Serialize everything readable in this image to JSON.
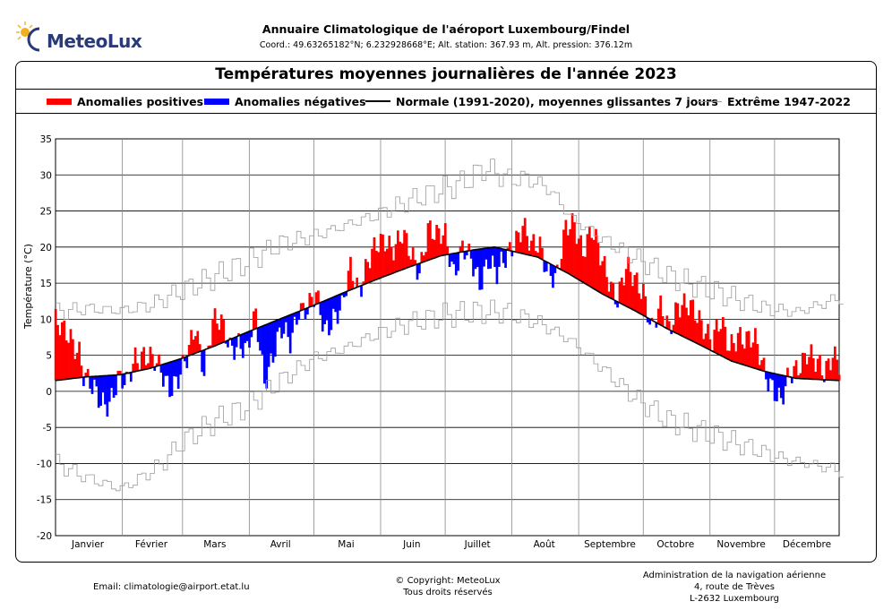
{
  "header": {
    "logo_text": "MeteoLux",
    "title": "Annuaire Climatologique de l'aéroport Luxembourg/Findel",
    "subtitle": "Coord.: 49.63265182°N; 6.232928668°E; Alt. station: 367.93 m, Alt. pression: 376.12m"
  },
  "colors": {
    "positive": "#ff0000",
    "negative": "#0000ff",
    "normal": "#000000",
    "extreme": "#9a9a9a"
  },
  "legend": {
    "positive": "Anomalies positives",
    "negative": "Anomalies négatives",
    "normal": "Normale (1991-2020), moyennes glissantes 7 jours",
    "extreme": "Extrême 1947-2022"
  },
  "chart_data": {
    "type": "area",
    "title": "Températures moyennes journalières de l'année 2023",
    "ylabel": "Température (°C)",
    "ylim": [
      -20,
      35
    ],
    "yticks": [
      35,
      30,
      25,
      20,
      15,
      10,
      5,
      0,
      -5,
      -10,
      -15,
      -20
    ],
    "grid": true,
    "legend_position": "top",
    "months": [
      "Janvier",
      "Février",
      "Mars",
      "Avril",
      "Mai",
      "Juin",
      "Juillet",
      "Août",
      "Septembre",
      "Octobre",
      "Novembre",
      "Décembre"
    ],
    "month_days": [
      31,
      28,
      31,
      30,
      31,
      30,
      31,
      31,
      30,
      31,
      30,
      31
    ],
    "series": [
      {
        "key": "normal",
        "name": "Normale (1991-2020), moyennes glissantes 7 jours",
        "x_day": [
          1,
          15,
          31,
          45,
          59,
          75,
          90,
          105,
          120,
          135,
          150,
          165,
          180,
          195,
          205,
          215,
          225,
          240,
          255,
          270,
          285,
          300,
          315,
          330,
          345,
          365
        ],
        "values": [
          1.5,
          2.0,
          2.3,
          3.2,
          4.5,
          6.3,
          8.2,
          10.0,
          11.8,
          13.7,
          15.5,
          17.2,
          18.8,
          19.6,
          20.0,
          19.3,
          18.6,
          16.2,
          13.5,
          11.2,
          8.7,
          6.5,
          4.2,
          2.8,
          1.8,
          1.5
        ]
      },
      {
        "key": "extreme_max",
        "name": "Extrême 1947-2022",
        "x_day": [
          1,
          15,
          31,
          45,
          59,
          75,
          90,
          105,
          120,
          135,
          150,
          165,
          180,
          190,
          200,
          210,
          220,
          230,
          240,
          255,
          270,
          285,
          300,
          315,
          330,
          345,
          365
        ],
        "values": [
          11.0,
          11.5,
          11.2,
          12.0,
          14.0,
          16.0,
          18.0,
          20.5,
          21.5,
          23.0,
          24.5,
          26.5,
          28.0,
          29.0,
          31.0,
          29.5,
          29.5,
          28.0,
          24.0,
          21.0,
          18.5,
          16.0,
          14.5,
          13.0,
          11.5,
          11.0,
          13.0
        ]
      },
      {
        "key": "extreme_min",
        "name": "Extrême 1947-2022",
        "x_day": [
          1,
          15,
          31,
          40,
          50,
          59,
          75,
          90,
          105,
          120,
          135,
          150,
          165,
          180,
          195,
          210,
          225,
          240,
          255,
          270,
          285,
          300,
          315,
          330,
          340,
          350,
          365
        ],
        "values": [
          -10.0,
          -12.0,
          -13.5,
          -12.0,
          -10.0,
          -7.0,
          -4.0,
          -2.0,
          1.5,
          4.5,
          6.0,
          8.0,
          9.5,
          10.5,
          11.0,
          11.0,
          9.5,
          7.0,
          3.0,
          -1.0,
          -4.0,
          -5.5,
          -7.0,
          -8.5,
          -9.5,
          -10.0,
          -11.0
        ]
      },
      {
        "key": "observed",
        "name": "Températures moyennes journalières",
        "x_day": [
          1,
          4,
          8,
          12,
          14,
          18,
          22,
          26,
          30,
          34,
          38,
          42,
          46,
          50,
          54,
          58,
          62,
          66,
          70,
          74,
          78,
          82,
          86,
          90,
          94,
          98,
          102,
          106,
          110,
          114,
          118,
          122,
          126,
          130,
          134,
          138,
          142,
          146,
          150,
          154,
          158,
          162,
          166,
          170,
          174,
          178,
          182,
          186,
          190,
          194,
          198,
          202,
          206,
          210,
          214,
          218,
          222,
          226,
          230,
          234,
          238,
          242,
          246,
          250,
          254,
          258,
          262,
          266,
          270,
          274,
          278,
          282,
          286,
          290,
          294,
          298,
          302,
          306,
          310,
          314,
          318,
          322,
          326,
          330,
          334,
          338,
          342,
          346,
          350,
          354,
          358,
          362,
          365
        ],
        "values": [
          9.5,
          8.0,
          7.5,
          6.0,
          2.5,
          0.0,
          -1.5,
          -1.0,
          1.5,
          0.5,
          5.0,
          5.5,
          4.0,
          2.5,
          1.0,
          2.0,
          4.0,
          9.0,
          3.5,
          9.5,
          9.0,
          6.5,
          7.0,
          5.0,
          10.5,
          2.0,
          5.0,
          8.0,
          7.0,
          12.0,
          11.0,
          13.0,
          9.0,
          10.5,
          11.0,
          17.0,
          14.5,
          18.0,
          19.5,
          21.0,
          20.5,
          21.5,
          18.5,
          17.0,
          23.0,
          21.0,
          21.5,
          17.0,
          20.0,
          17.5,
          15.0,
          19.0,
          16.0,
          18.0,
          21.0,
          23.5,
          19.5,
          20.0,
          17.0,
          16.0,
          22.0,
          23.5,
          20.0,
          22.0,
          18.5,
          16.0,
          13.0,
          16.5,
          15.5,
          14.5,
          8.5,
          11.0,
          9.0,
          12.5,
          11.5,
          10.5,
          9.5,
          7.5,
          9.0,
          6.0,
          8.5,
          7.0,
          6.5,
          3.5,
          1.0,
          -2.0,
          2.0,
          4.0,
          5.5,
          3.5,
          2.5,
          6.0,
          4.0
        ]
      }
    ]
  },
  "footer": {
    "email": "Email: climatologie@airport.etat.lu",
    "copyright_line1": "© Copyright: MeteoLux",
    "copyright_line2": "Tous droits réservés",
    "admin_line1": "Administration de la navigation aérienne",
    "admin_line2": "4, route de Trèves",
    "admin_line3": "L-2632 Luxembourg"
  }
}
